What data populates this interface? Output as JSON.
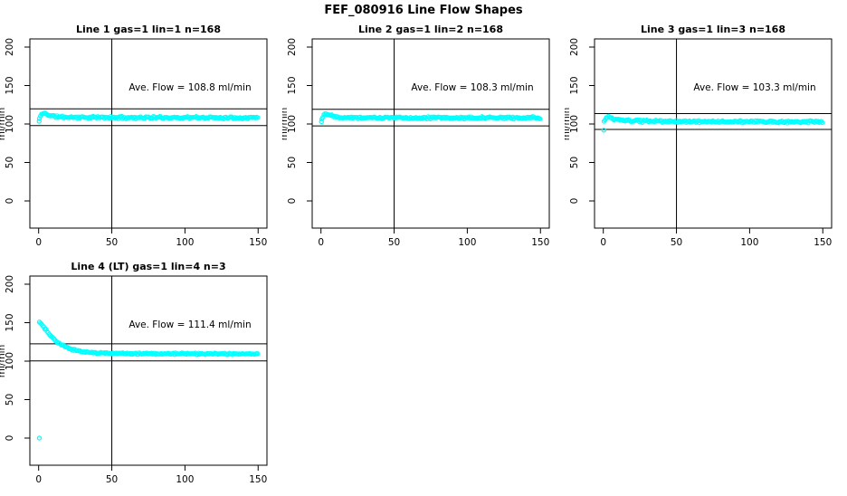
{
  "main_title": "FEF_080916  Line Flow Shapes",
  "colors": {
    "points": "#00ffff",
    "axis": "#000000",
    "background": "#ffffff",
    "text": "#000000"
  },
  "chart_data": [
    {
      "type": "scatter",
      "title": "Line 1 gas=1 lin=1 n=168",
      "line": 1,
      "gas": 1,
      "lin": 1,
      "n": 168,
      "ave_flow": 108.8,
      "annotation": "Ave. Flow =  108.8  ml/min",
      "ylabel": "ml/min",
      "xlim": [
        0,
        150
      ],
      "ylim": [
        0,
        200
      ],
      "xticks": [
        0,
        50,
        100,
        150
      ],
      "yticks": [
        0,
        50,
        100,
        150,
        200
      ],
      "vline_x": 50,
      "hlines": [
        97.9,
        119.7
      ],
      "profile": [
        [
          0.5,
          107
        ],
        [
          1.5,
          111
        ],
        [
          3,
          114.3
        ],
        [
          5,
          113.2
        ],
        [
          8,
          111
        ],
        [
          12,
          109.5
        ],
        [
          20,
          108.8
        ],
        [
          40,
          108.5
        ],
        [
          80,
          108.4
        ],
        [
          150,
          108.3
        ]
      ],
      "outliers": [
        [
          0.4,
          103.5
        ]
      ],
      "x_step": 0.75,
      "noise": 1.0,
      "seed": 11
    },
    {
      "type": "scatter",
      "title": "Line 2 gas=1 lin=2 n=168",
      "line": 2,
      "gas": 1,
      "lin": 2,
      "n": 168,
      "ave_flow": 108.3,
      "annotation": "Ave. Flow =  108.3  ml/min",
      "ylabel": "ml/min",
      "xlim": [
        0,
        150
      ],
      "ylim": [
        0,
        200
      ],
      "xticks": [
        0,
        50,
        100,
        150
      ],
      "yticks": [
        0,
        50,
        100,
        150,
        200
      ],
      "vline_x": 50,
      "hlines": [
        97.5,
        119.1
      ],
      "profile": [
        [
          0.5,
          106.5
        ],
        [
          1.5,
          110.5
        ],
        [
          3,
          113.8
        ],
        [
          5,
          112.8
        ],
        [
          8,
          110.6
        ],
        [
          12,
          109.2
        ],
        [
          20,
          108.5
        ],
        [
          40,
          108.2
        ],
        [
          80,
          108.1
        ],
        [
          150,
          108.0
        ]
      ],
      "outliers": [
        [
          0.4,
          103
        ]
      ],
      "x_step": 0.75,
      "noise": 1.0,
      "seed": 22
    },
    {
      "type": "scatter",
      "title": "Line 3 gas=1 lin=3 n=168",
      "line": 3,
      "gas": 1,
      "lin": 3,
      "n": 168,
      "ave_flow": 103.3,
      "annotation": "Ave. Flow =  103.3  ml/min",
      "ylabel": "ml/min",
      "xlim": [
        0,
        150
      ],
      "ylim": [
        0,
        200
      ],
      "xticks": [
        0,
        50,
        100,
        150
      ],
      "yticks": [
        0,
        50,
        100,
        150,
        200
      ],
      "vline_x": 50,
      "hlines": [
        93.0,
        113.6
      ],
      "profile": [
        [
          0.5,
          103
        ],
        [
          1.5,
          107
        ],
        [
          3,
          109
        ],
        [
          5,
          108
        ],
        [
          8,
          106
        ],
        [
          12,
          104.8
        ],
        [
          20,
          104
        ],
        [
          40,
          103.5
        ],
        [
          80,
          103.1
        ],
        [
          150,
          102.7
        ]
      ],
      "outliers": [
        [
          0.4,
          92
        ]
      ],
      "x_step": 0.75,
      "noise": 1.0,
      "seed": 33
    },
    {
      "type": "scatter",
      "title": "Line 4 (LT) gas=1 lin=4 n=3",
      "line": 4,
      "gas": 1,
      "lin": 4,
      "n": 3,
      "ave_flow": 111.4,
      "annotation": "Ave. Flow =  111.4  ml/min",
      "ylabel": "ml/min",
      "xlim": [
        0,
        150
      ],
      "ylim": [
        0,
        200
      ],
      "xticks": [
        0,
        50,
        100,
        150
      ],
      "yticks": [
        0,
        50,
        100,
        150,
        200
      ],
      "vline_x": 50,
      "hlines": [
        100.3,
        122.5
      ],
      "profile": [
        [
          0.5,
          151
        ],
        [
          2,
          148
        ],
        [
          4,
          143
        ],
        [
          6,
          138
        ],
        [
          8,
          133.5
        ],
        [
          10,
          129.5
        ],
        [
          12,
          126
        ],
        [
          15,
          122
        ],
        [
          18,
          119
        ],
        [
          21,
          116.5
        ],
        [
          25,
          114
        ],
        [
          30,
          112.3
        ],
        [
          36,
          111.2
        ],
        [
          45,
          110.4
        ],
        [
          60,
          109.9
        ],
        [
          90,
          109.6
        ],
        [
          150,
          109.3
        ]
      ],
      "outliers": [
        [
          0.5,
          0
        ]
      ],
      "x_step": 0.75,
      "noise": 0.7,
      "seed": 44
    }
  ]
}
